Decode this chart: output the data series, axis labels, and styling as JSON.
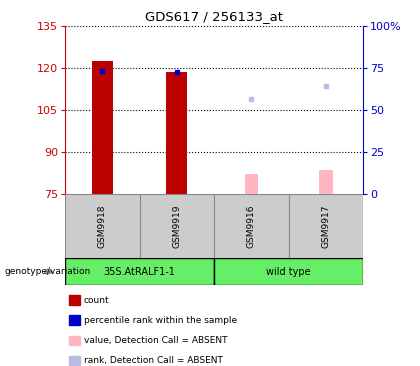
{
  "title": "GDS617 / 256133_at",
  "samples": [
    "GSM9918",
    "GSM9919",
    "GSM9916",
    "GSM9917"
  ],
  "group1_label": "35S.AtRALF1-1",
  "group2_label": "wild type",
  "ylim_left": [
    75,
    135
  ],
  "ylim_right": [
    0,
    100
  ],
  "yticks_left": [
    75,
    90,
    105,
    120,
    135
  ],
  "yticks_right": [
    0,
    25,
    50,
    75,
    100
  ],
  "ytick_labels_right": [
    "0",
    "25",
    "50",
    "75",
    "100%"
  ],
  "bar_base": 75,
  "count_values": [
    122.5,
    118.5,
    null,
    null
  ],
  "count_color": "#bb0000",
  "rank_values": [
    119.0,
    118.5,
    null,
    null
  ],
  "rank_color": "#0000cc",
  "absent_value_values": [
    null,
    null,
    82.0,
    83.5
  ],
  "absent_value_color": "#ffb6c1",
  "absent_rank_values": [
    null,
    null,
    109.0,
    113.5
  ],
  "absent_rank_color": "#b8bce0",
  "bg_color": "#ffffff",
  "sample_box_color": "#cccccc",
  "group_color": "#66ee66",
  "left_axis_color": "#cc0000",
  "right_axis_color": "#0000cc",
  "legend_items": [
    "count",
    "percentile rank within the sample",
    "value, Detection Call = ABSENT",
    "rank, Detection Call = ABSENT"
  ],
  "legend_colors": [
    "#bb0000",
    "#0000cc",
    "#ffb6c1",
    "#b8bce0"
  ],
  "fig_width": 4.2,
  "fig_height": 3.66,
  "dpi": 100
}
